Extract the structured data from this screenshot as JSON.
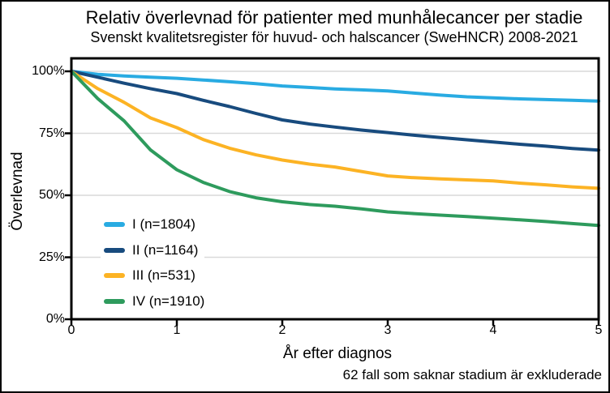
{
  "colors": {
    "background": "#ffffff",
    "border": "#000000",
    "axis": "#000000",
    "grid": "#d9d9d9",
    "stage1": "#29abe2",
    "stage2": "#184b7e",
    "stage3": "#fcb324",
    "stage4": "#2e9b5d"
  },
  "chart_data": {
    "type": "line",
    "title": "Relativ överlevnad för patienter med munhålecancer per stadie",
    "subtitle": "Svenskt kvalitetsregister för huvud- och halscancer (SweHNCR) 2008-2021",
    "xlabel": "År efter diagnos",
    "ylabel": "Överlevnad",
    "annotation": "62 fall som saknar stadium är exkluderade",
    "unit": "% relative survival",
    "xlim": [
      0,
      5
    ],
    "ylim": [
      0,
      100
    ],
    "x_ticks": [
      0,
      1,
      2,
      3,
      4,
      5
    ],
    "y_ticks": [
      "0%",
      "25%",
      "50%",
      "75%",
      "100%"
    ],
    "y_tick_values": [
      0,
      25,
      50,
      75,
      100
    ],
    "grid": true,
    "legend_position": "inside lower-left",
    "x": [
      0,
      0.25,
      0.5,
      0.75,
      1,
      1.25,
      1.5,
      1.75,
      2,
      2.25,
      2.5,
      2.75,
      3,
      3.25,
      3.5,
      3.75,
      4,
      4.25,
      4.5,
      4.75,
      5
    ],
    "series": [
      {
        "stage": "I",
        "n": 1804,
        "name": "I (n=1804)",
        "color": "#29abe2",
        "values": [
          100,
          98.8,
          98.1,
          97.6,
          97.2,
          96.5,
          95.8,
          95.0,
          94.1,
          93.5,
          92.9,
          92.5,
          92.1,
          91.2,
          90.4,
          89.7,
          89.3,
          88.9,
          88.6,
          88.3,
          88.0
        ]
      },
      {
        "stage": "II",
        "n": 1164,
        "name": "II (n=1164)",
        "color": "#184b7e",
        "values": [
          100,
          97.6,
          95.2,
          93.0,
          91.0,
          88.3,
          85.8,
          83.0,
          80.4,
          78.8,
          77.5,
          76.3,
          75.3,
          74.2,
          73.3,
          72.4,
          71.5,
          70.6,
          69.8,
          68.9,
          68.2
        ]
      },
      {
        "stage": "III",
        "n": 531,
        "name": "III (n=531)",
        "color": "#fcb324",
        "values": [
          100,
          93.0,
          87.5,
          81.2,
          77.3,
          72.5,
          69.0,
          66.3,
          64.2,
          62.6,
          61.4,
          59.6,
          57.8,
          57.1,
          56.6,
          56.2,
          55.8,
          54.9,
          54.2,
          53.4,
          52.8
        ]
      },
      {
        "stage": "IV",
        "n": 1910,
        "name": "IV (n=1910)",
        "color": "#2e9b5d",
        "values": [
          100,
          89.0,
          80.0,
          68.3,
          60.3,
          55.2,
          51.5,
          49.0,
          47.4,
          46.3,
          45.6,
          44.5,
          43.3,
          42.6,
          42.0,
          41.4,
          40.8,
          40.1,
          39.4,
          38.6,
          37.8
        ]
      }
    ]
  }
}
